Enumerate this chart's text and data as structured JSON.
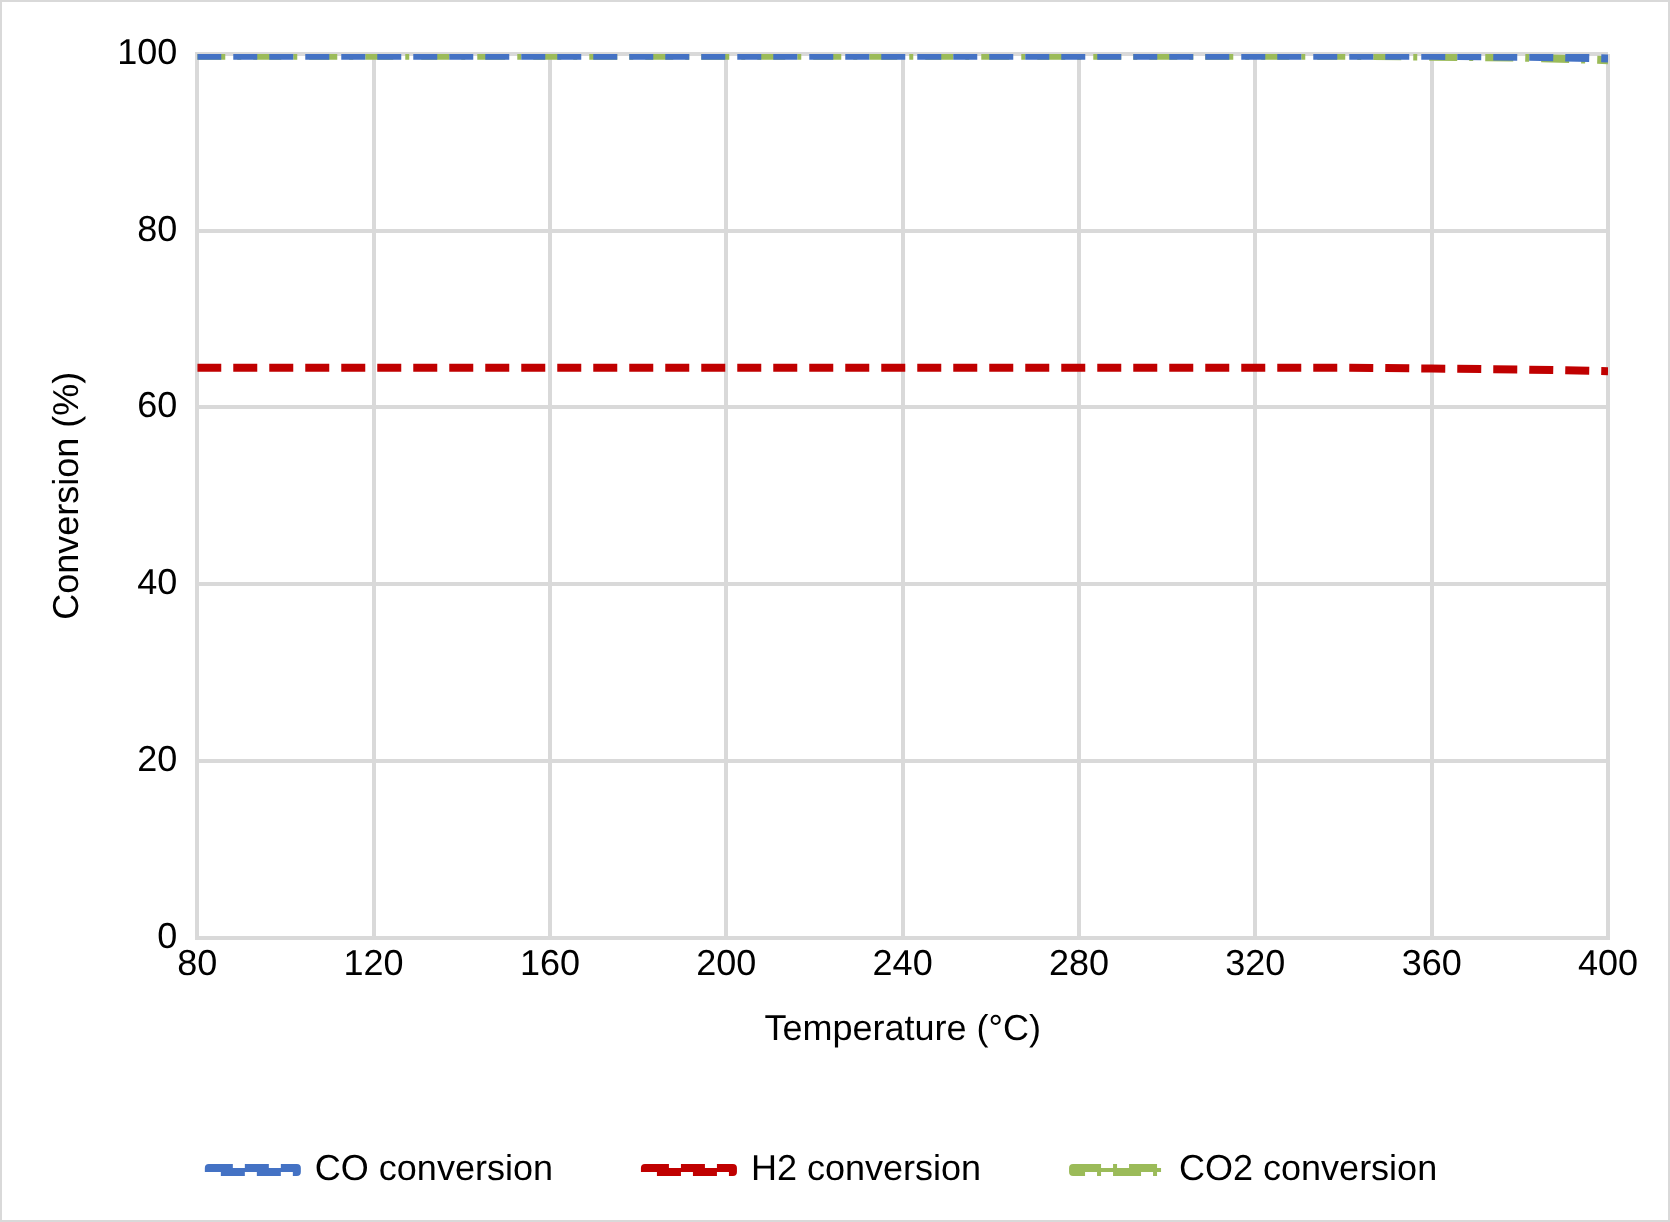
{
  "chart_data": {
    "type": "line",
    "xlabel": "Temperature (°C)",
    "ylabel": "Conversion (%)",
    "x": [
      80,
      100,
      120,
      140,
      160,
      180,
      200,
      220,
      240,
      260,
      280,
      300,
      320,
      340,
      360,
      380,
      400
    ],
    "series": [
      {
        "name": "CO conversion",
        "color": "#4472c4",
        "line_style": "dashed",
        "values": [
          99.8,
          99.8,
          99.8,
          99.8,
          99.8,
          99.8,
          99.8,
          99.8,
          99.8,
          99.8,
          99.8,
          99.8,
          99.8,
          99.8,
          99.8,
          99.7,
          99.5
        ]
      },
      {
        "name": "H2 conversion",
        "color": "#c00000",
        "line_style": "dashed",
        "values": [
          64.5,
          64.5,
          64.5,
          64.5,
          64.5,
          64.5,
          64.5,
          64.5,
          64.5,
          64.5,
          64.5,
          64.5,
          64.5,
          64.5,
          64.4,
          64.3,
          64.1
        ]
      },
      {
        "name": "CO2 conversion",
        "color": "#9bbb59",
        "line_style": "dotted",
        "values": [
          99.8,
          99.8,
          99.8,
          99.8,
          99.8,
          99.8,
          99.8,
          99.8,
          99.8,
          99.8,
          99.8,
          99.8,
          99.8,
          99.8,
          99.7,
          99.6,
          99.3
        ]
      }
    ],
    "xlim": [
      80,
      400
    ],
    "xticks": [
      80,
      120,
      160,
      200,
      240,
      280,
      320,
      360,
      400
    ],
    "ylim": [
      0,
      100
    ],
    "yticks": [
      0,
      20,
      40,
      60,
      80,
      100
    ],
    "grid": true,
    "legend": "bottom",
    "marker": "none"
  }
}
